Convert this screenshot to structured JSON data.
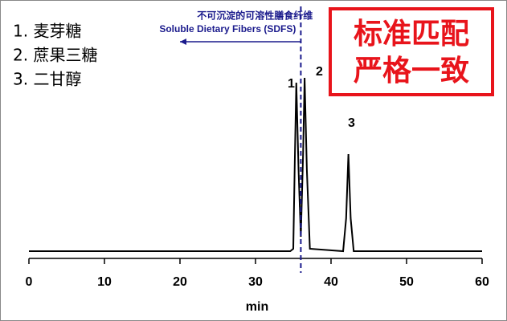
{
  "chart_data": {
    "type": "line",
    "x": [
      0,
      34.6,
      35.0,
      35.2,
      35.4,
      35.7,
      36.0,
      36.3,
      36.5,
      36.8,
      37.2,
      41.6,
      42.0,
      42.3,
      42.6,
      43.0,
      60
    ],
    "values": [
      9,
      9,
      12,
      120,
      219,
      110,
      27,
      130,
      225,
      110,
      12,
      9,
      50,
      130,
      50,
      9,
      9
    ],
    "color": "#000000",
    "xlim": [
      0,
      60
    ],
    "xticks": [
      0,
      10,
      20,
      30,
      40,
      50,
      60
    ],
    "ylim": [
      0,
      230
    ],
    "x_label": "min",
    "peak_labels": [
      "1",
      "2",
      "3"
    ],
    "marker": {
      "x": 36,
      "arrow_to": 20,
      "label_cn": "不可沉淀的可溶性膳食纤维",
      "label_en": "Soluble Dietary Fibers (SDFS)",
      "color": "#1a1a8c"
    },
    "notes": [
      "1. 麦芽糖",
      "2. 蔗果三糖",
      "3. 二甘醇"
    ],
    "badge": [
      "标准匹配",
      "严格一致"
    ]
  }
}
